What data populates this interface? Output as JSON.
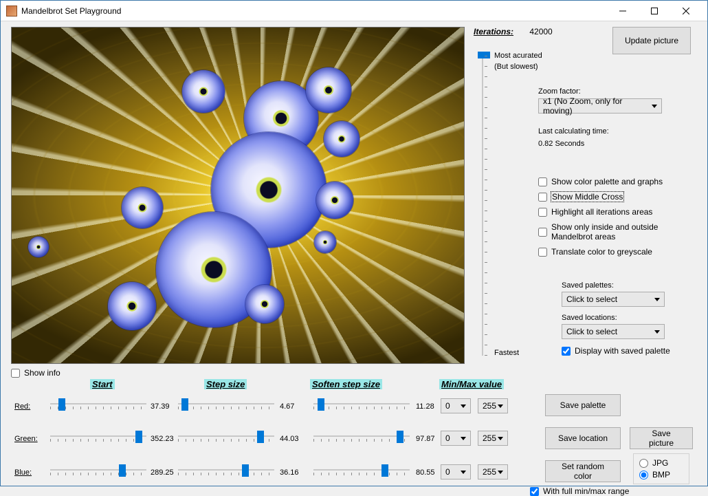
{
  "window": {
    "title": "Mandelbrot Set Playground"
  },
  "iterations": {
    "label": "Iterations:",
    "value": "42000"
  },
  "update_btn": "Update picture",
  "slider_labels": {
    "top_line1": "Most acurated",
    "top_line2": "(But slowest)",
    "bottom": "Fastest"
  },
  "zoom": {
    "label": "Zoom factor:",
    "selected": "x1 (No Zoom, only for moving)"
  },
  "calc_time": {
    "label": "Last calculating time:",
    "value": "0.82 Seconds"
  },
  "checks": {
    "palette_graphs": "Show color palette and graphs",
    "middle_cross": "Show Middle Cross",
    "highlight": "Highlight all iterations areas",
    "inside_outside": "Show only inside and outside Mandelbrot areas",
    "greyscale": "Translate color to greyscale"
  },
  "saved": {
    "palettes_label": "Saved palettes:",
    "locations_label": "Saved locations:",
    "placeholder": "Click to select",
    "display_with_palette": "Display with saved palette"
  },
  "show_info": "Show info",
  "headers": {
    "start": "Start",
    "step": "Step size",
    "soften": "Soften step size",
    "minmax": "Min/Max value"
  },
  "rows": {
    "red": {
      "label": "Red:",
      "start": "37.39",
      "start_pct": 12,
      "step": "4.67",
      "step_pct": 7,
      "soften": "11.28",
      "soften_pct": 8,
      "min": "0",
      "max": "255"
    },
    "green": {
      "label": "Green:",
      "start": "352.23",
      "start_pct": 92,
      "step": "44.03",
      "step_pct": 86,
      "soften": "97.87",
      "soften_pct": 90,
      "min": "0",
      "max": "255"
    },
    "blue": {
      "label": "Blue:",
      "start": "289.25",
      "start_pct": 75,
      "step": "36.16",
      "step_pct": 70,
      "soften": "80.55",
      "soften_pct": 74,
      "min": "0",
      "max": "255"
    }
  },
  "buttons": {
    "save_palette": "Save  palette",
    "save_location": "Save location",
    "random": "Set random color",
    "save_picture": "Save picture"
  },
  "full_range": "With full min/max range",
  "formats": {
    "jpg": "JPG",
    "bmp": "BMP",
    "selected": "bmp"
  }
}
